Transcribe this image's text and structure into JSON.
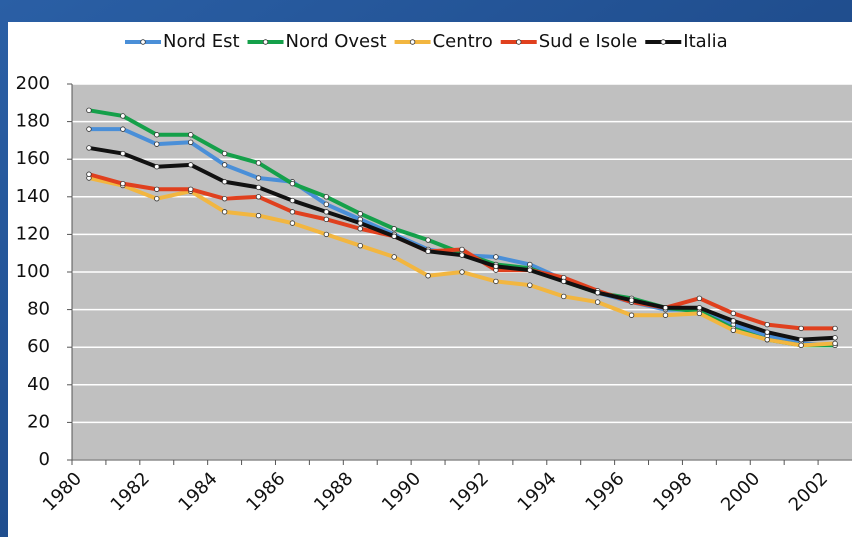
{
  "chart_data": {
    "type": "line",
    "categories": [
      "1980",
      null,
      "1982",
      null,
      "1984",
      null,
      "1986",
      null,
      "1988",
      null,
      "1990",
      null,
      "1992",
      null,
      "1994",
      null,
      "1996",
      null,
      "1998",
      null,
      "2000",
      null,
      "2002"
    ],
    "series": [
      {
        "name": "Nord Est",
        "color": "#4a8fd8",
        "values": [
          176,
          176,
          168,
          169,
          157,
          150,
          148,
          136,
          128,
          120,
          112,
          109,
          108,
          104,
          96,
          89,
          84,
          80,
          80,
          72,
          66,
          62,
          61
        ]
      },
      {
        "name": "Nord Ovest",
        "color": "#15a04a",
        "values": [
          186,
          183,
          173,
          173,
          163,
          158,
          147,
          140,
          131,
          123,
          117,
          110,
          104,
          102,
          95,
          89,
          86,
          81,
          79,
          70,
          64,
          61,
          61
        ]
      },
      {
        "name": "Centro",
        "color": "#f2b640",
        "values": [
          150,
          146,
          139,
          143,
          132,
          130,
          126,
          120,
          114,
          108,
          98,
          100,
          95,
          93,
          87,
          84,
          77,
          77,
          78,
          69,
          64,
          61,
          62
        ]
      },
      {
        "name": "Sud e Isole",
        "color": "#e0401e",
        "values": [
          152,
          147,
          144,
          144,
          139,
          140,
          132,
          128,
          123,
          119,
          111,
          112,
          101,
          101,
          97,
          90,
          84,
          81,
          86,
          78,
          72,
          70,
          70
        ]
      },
      {
        "name": "Italia",
        "color": "#111111",
        "values": [
          166,
          163,
          156,
          157,
          148,
          145,
          138,
          132,
          126,
          119,
          111,
          109,
          103,
          101,
          95,
          89,
          85,
          81,
          81,
          74,
          68,
          64,
          65
        ]
      }
    ],
    "ylim": [
      0,
      200
    ],
    "yticks": [
      0,
      20,
      40,
      60,
      80,
      100,
      120,
      140,
      160,
      180,
      200
    ],
    "grid": true
  }
}
